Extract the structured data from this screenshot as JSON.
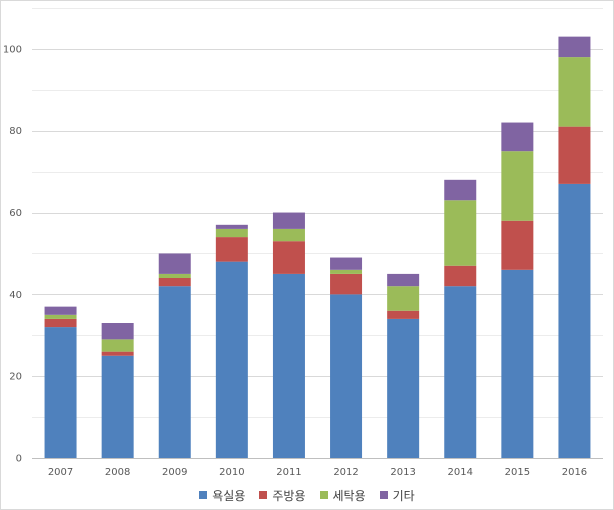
{
  "chart_data": {
    "type": "bar",
    "stacked": true,
    "categories": [
      "2007",
      "2008",
      "2009",
      "2010",
      "2011",
      "2012",
      "2013",
      "2014",
      "2015",
      "2016"
    ],
    "series": [
      {
        "name": "욕실용",
        "color": "#4f81bd",
        "values": [
          32,
          25,
          42,
          48,
          45,
          40,
          34,
          42,
          46,
          67
        ]
      },
      {
        "name": "주방용",
        "color": "#c0504d",
        "values": [
          2,
          1,
          2,
          6,
          8,
          5,
          2,
          5,
          12,
          14
        ]
      },
      {
        "name": "세탁용",
        "color": "#9bbb59",
        "values": [
          1,
          3,
          1,
          2,
          3,
          1,
          6,
          16,
          17,
          17
        ]
      },
      {
        "name": "기타",
        "color": "#8064a2",
        "values": [
          2,
          4,
          5,
          1,
          4,
          3,
          3,
          5,
          7,
          5
        ]
      }
    ],
    "title": "",
    "xlabel": "",
    "ylabel": "",
    "ylim": [
      0,
      110
    ],
    "yticks": [
      0,
      20,
      40,
      60,
      80,
      100
    ],
    "grid": true,
    "legend_position": "bottom"
  }
}
